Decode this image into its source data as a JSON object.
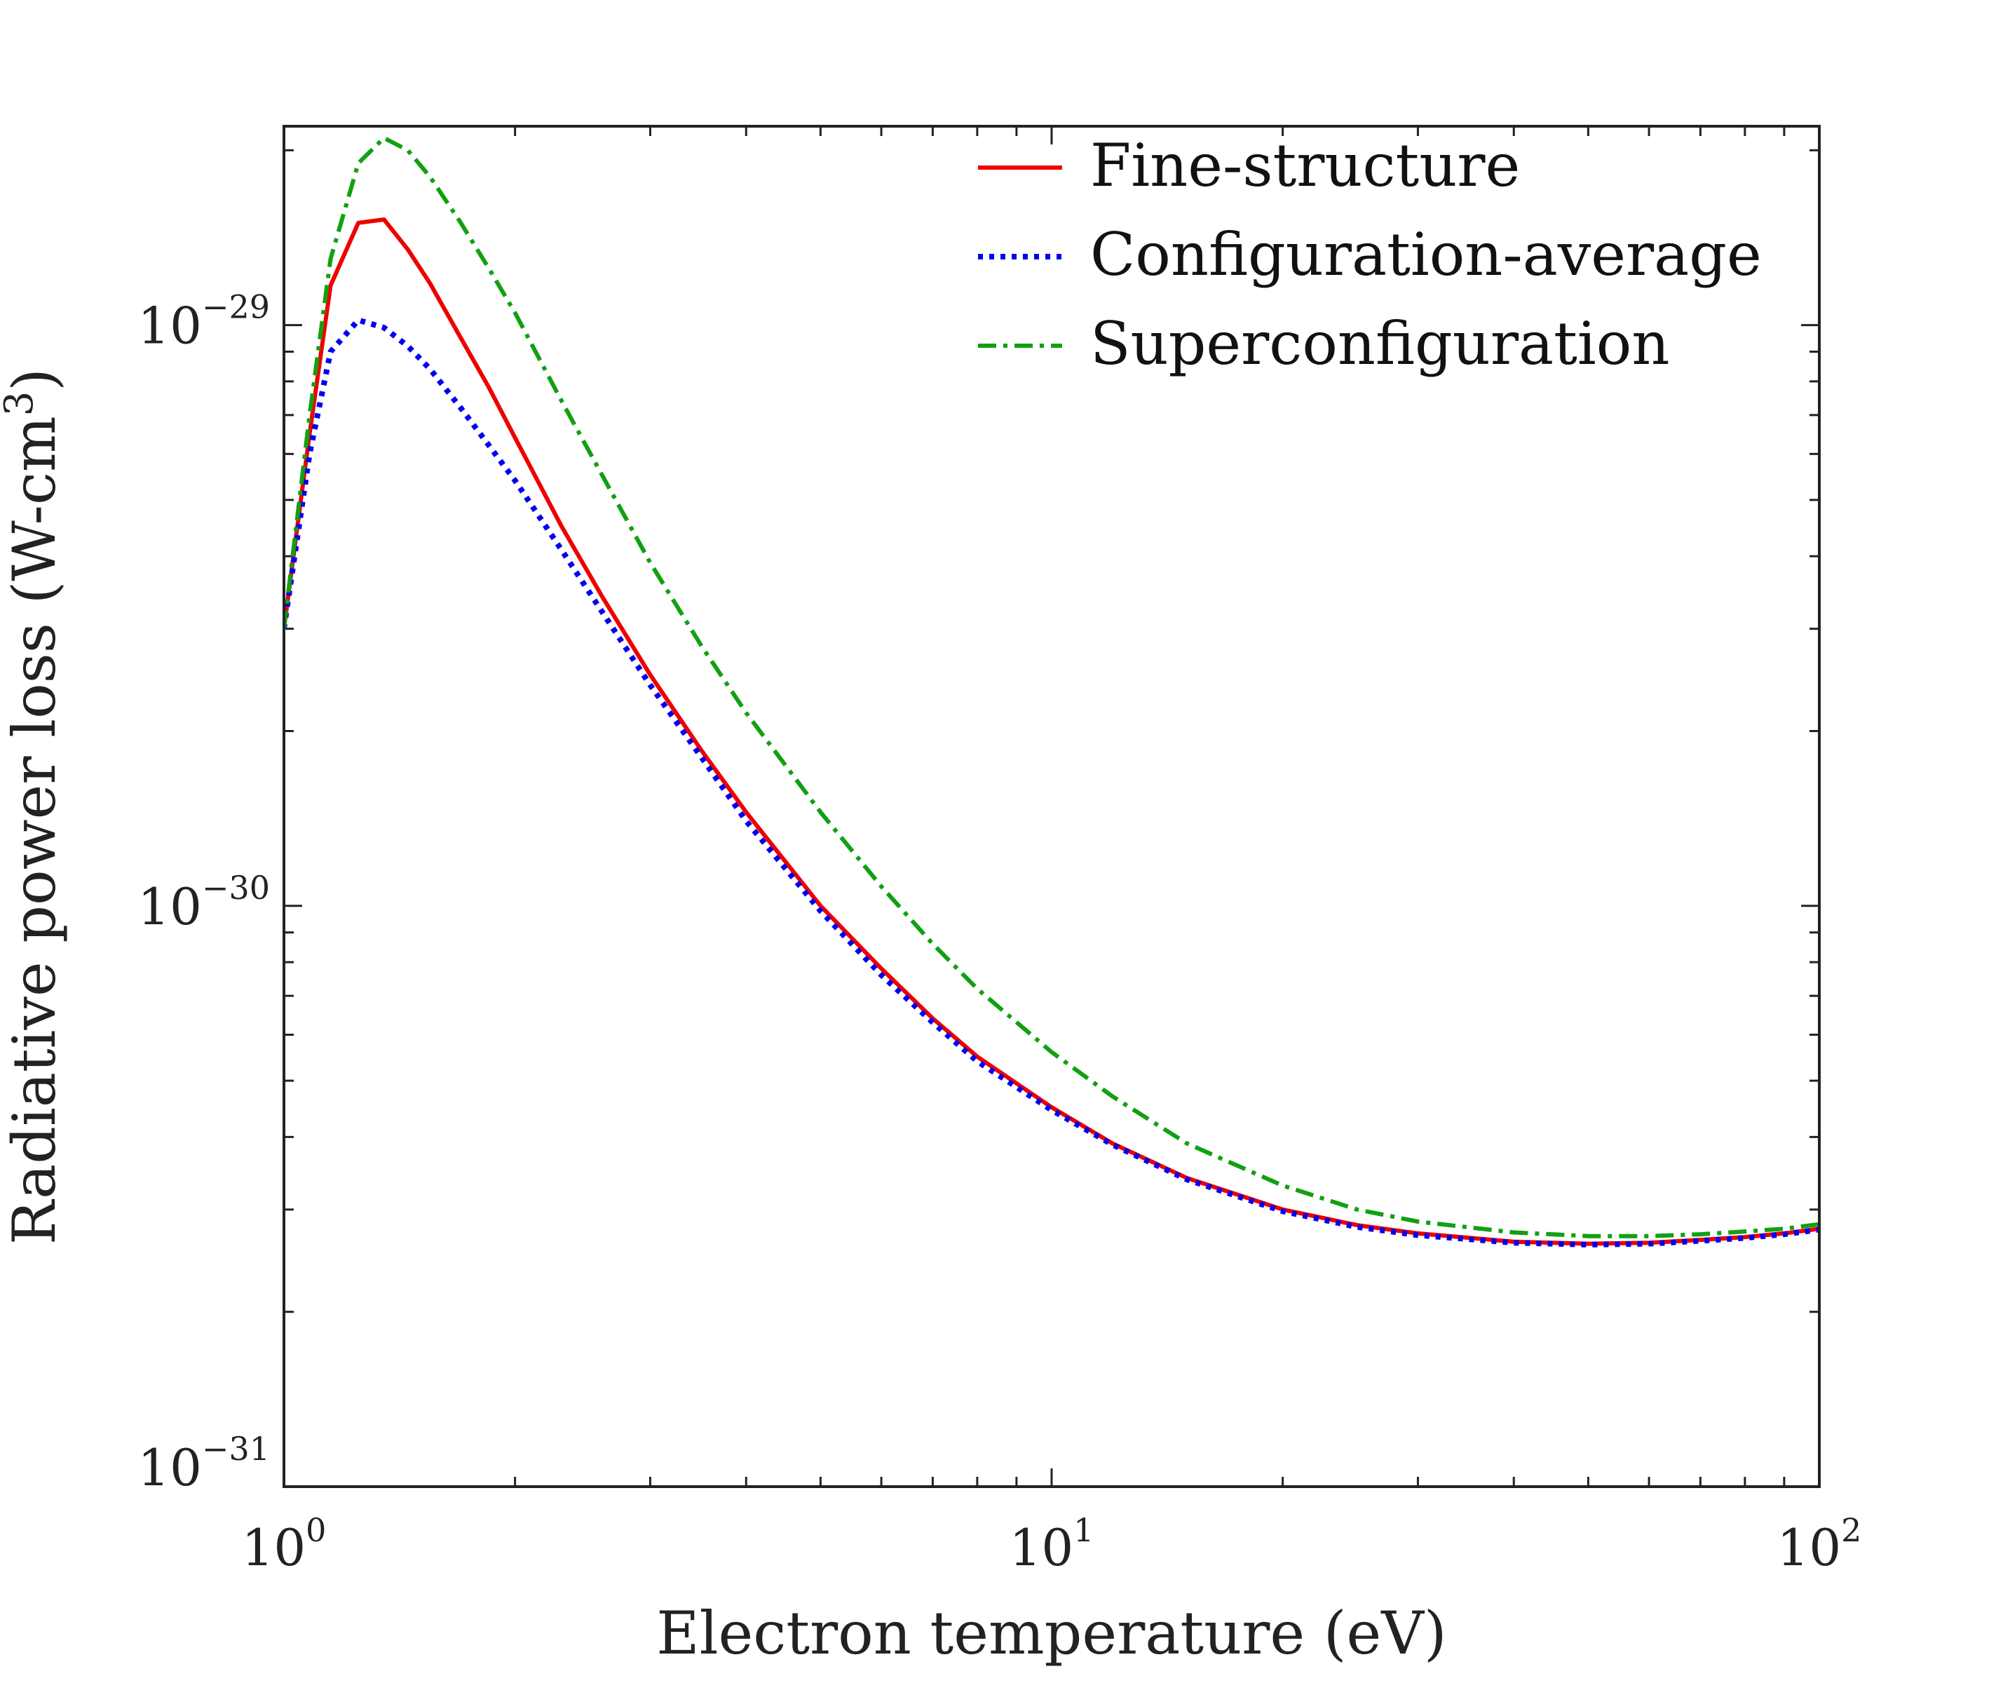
{
  "chart_data": {
    "type": "line",
    "title": "",
    "xlabel": "Electron temperature (eV)",
    "ylabel_main": "Radiative power loss (W-cm",
    "ylabel_sup": "3",
    "ylabel_close": ")",
    "xscale": "log",
    "yscale": "log",
    "xlim": [
      1,
      100
    ],
    "ylim": [
      1e-31,
      2.2e-29
    ],
    "x_ticks": [
      {
        "value": 1,
        "base": "10",
        "exp": "0"
      },
      {
        "value": 10,
        "base": "10",
        "exp": "1"
      },
      {
        "value": 100,
        "base": "10",
        "exp": "2"
      }
    ],
    "y_ticks": [
      {
        "value": 1e-31,
        "base": "10",
        "exp": "−31"
      },
      {
        "value": 1e-30,
        "base": "10",
        "exp": "−30"
      },
      {
        "value": 1e-29,
        "base": "10",
        "exp": "−29"
      }
    ],
    "legend_position": "top-right",
    "series": [
      {
        "name": "Fine-structure",
        "color": "#ee0000",
        "style": "solid",
        "x": [
          1.0,
          1.08,
          1.15,
          1.25,
          1.35,
          1.45,
          1.55,
          1.7,
          1.85,
          2.0,
          2.3,
          2.6,
          3.0,
          3.5,
          4.0,
          5.0,
          6.0,
          7.0,
          8.0,
          10.0,
          12.0,
          15.0,
          20.0,
          25.0,
          30.0,
          40.0,
          50.0,
          60.0,
          70.0,
          80.0,
          90.0,
          100.0
        ],
        "values": [
          3e-30,
          6.5e-30,
          1.17e-29,
          1.5e-29,
          1.52e-29,
          1.35e-29,
          1.18e-29,
          9.5e-30,
          7.8e-30,
          6.4e-30,
          4.5e-30,
          3.4e-30,
          2.5e-30,
          1.85e-30,
          1.45e-30,
          1e-30,
          7.8e-31,
          6.4e-31,
          5.5e-31,
          4.5e-31,
          3.9e-31,
          3.4e-31,
          3e-31,
          2.82e-31,
          2.73e-31,
          2.64e-31,
          2.62e-31,
          2.63e-31,
          2.66e-31,
          2.69e-31,
          2.73e-31,
          2.78e-31
        ]
      },
      {
        "name": "Configuration-average",
        "color": "#0000ee",
        "style": "dotted",
        "x": [
          1.0,
          1.08,
          1.15,
          1.25,
          1.35,
          1.45,
          1.55,
          1.7,
          1.85,
          2.0,
          2.3,
          2.6,
          3.0,
          3.5,
          4.0,
          5.0,
          6.0,
          7.0,
          8.0,
          10.0,
          12.0,
          15.0,
          20.0,
          25.0,
          30.0,
          40.0,
          50.0,
          60.0,
          70.0,
          80.0,
          90.0,
          100.0
        ],
        "values": [
          3e-30,
          6e-30,
          9e-30,
          1.02e-29,
          9.9e-30,
          9.2e-30,
          8.4e-30,
          7.2e-30,
          6.2e-30,
          5.4e-30,
          4.1e-30,
          3.2e-30,
          2.4e-30,
          1.8e-30,
          1.4e-30,
          9.8e-31,
          7.6e-31,
          6.3e-31,
          5.4e-31,
          4.45e-31,
          3.88e-31,
          3.38e-31,
          2.98e-31,
          2.8e-31,
          2.71e-31,
          2.63e-31,
          2.61e-31,
          2.62e-31,
          2.65e-31,
          2.68e-31,
          2.72e-31,
          2.77e-31
        ]
      },
      {
        "name": "Superconfiguration",
        "color": "#11a011",
        "style": "dashdot",
        "x": [
          1.0,
          1.08,
          1.15,
          1.25,
          1.35,
          1.45,
          1.55,
          1.7,
          1.85,
          2.0,
          2.3,
          2.6,
          3.0,
          3.5,
          4.0,
          5.0,
          6.0,
          7.0,
          8.0,
          10.0,
          12.0,
          15.0,
          20.0,
          25.0,
          30.0,
          40.0,
          50.0,
          60.0,
          70.0,
          80.0,
          90.0,
          100.0
        ],
        "values": [
          3e-30,
          7e-30,
          1.3e-29,
          1.9e-29,
          2.1e-29,
          2e-29,
          1.8e-29,
          1.5e-29,
          1.25e-29,
          1.05e-29,
          7.4e-30,
          5.5e-30,
          3.9e-30,
          2.8e-30,
          2.15e-30,
          1.45e-30,
          1.08e-30,
          8.6e-31,
          7.2e-31,
          5.6e-31,
          4.7e-31,
          3.9e-31,
          3.3e-31,
          3e-31,
          2.86e-31,
          2.74e-31,
          2.7e-31,
          2.7e-31,
          2.72e-31,
          2.75e-31,
          2.78e-31,
          2.83e-31
        ]
      }
    ]
  }
}
